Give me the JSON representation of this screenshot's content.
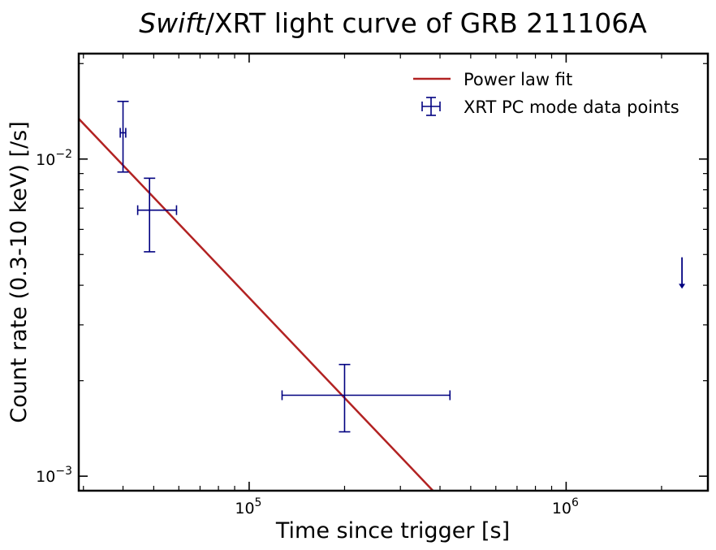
{
  "chart_data": {
    "type": "scatter",
    "title_italic": "Swift",
    "title_rest": "/XRT light curve of GRB 211106A",
    "xlabel": "Time since trigger [s]",
    "ylabel": "Count rate (0.3-10 keV) [/s]",
    "xscale": "log",
    "yscale": "log",
    "xlim": [
      29000,
      2800000
    ],
    "ylim": [
      0.0009,
      0.0215
    ],
    "x_ticks": [
      {
        "value": 100000,
        "base": "10",
        "exp": "5"
      },
      {
        "value": 1000000,
        "base": "10",
        "exp": "6"
      }
    ],
    "y_ticks": [
      {
        "value": 0.001,
        "base": "10",
        "exp": "−3"
      },
      {
        "value": 0.01,
        "base": "10",
        "exp": "−2"
      }
    ],
    "series": [
      {
        "name": "XRT PC mode data points",
        "color": "#000080",
        "points": [
          {
            "x": 40000,
            "y": 0.0121,
            "x_lo": 39200,
            "x_hi": 40800,
            "y_lo": 0.0091,
            "y_hi": 0.0152
          },
          {
            "x": 48500,
            "y": 0.0069,
            "x_lo": 44500,
            "x_hi": 59000,
            "y_lo": 0.0051,
            "y_hi": 0.0087
          },
          {
            "x": 200000,
            "y": 0.0018,
            "x_lo": 127000,
            "x_hi": 430000,
            "y_lo": 0.00138,
            "y_hi": 0.00225
          }
        ],
        "upper_limits": [
          {
            "x": 2320000,
            "y": 0.0049,
            "y_arrow_to": 0.0039
          }
        ]
      },
      {
        "name": "Power law fit",
        "color": "#b22222",
        "type": "line",
        "x": [
          29000,
          380000
        ],
        "y": [
          0.0134,
          0.0009
        ]
      }
    ],
    "legend_placement": "top-right",
    "grid": false
  }
}
